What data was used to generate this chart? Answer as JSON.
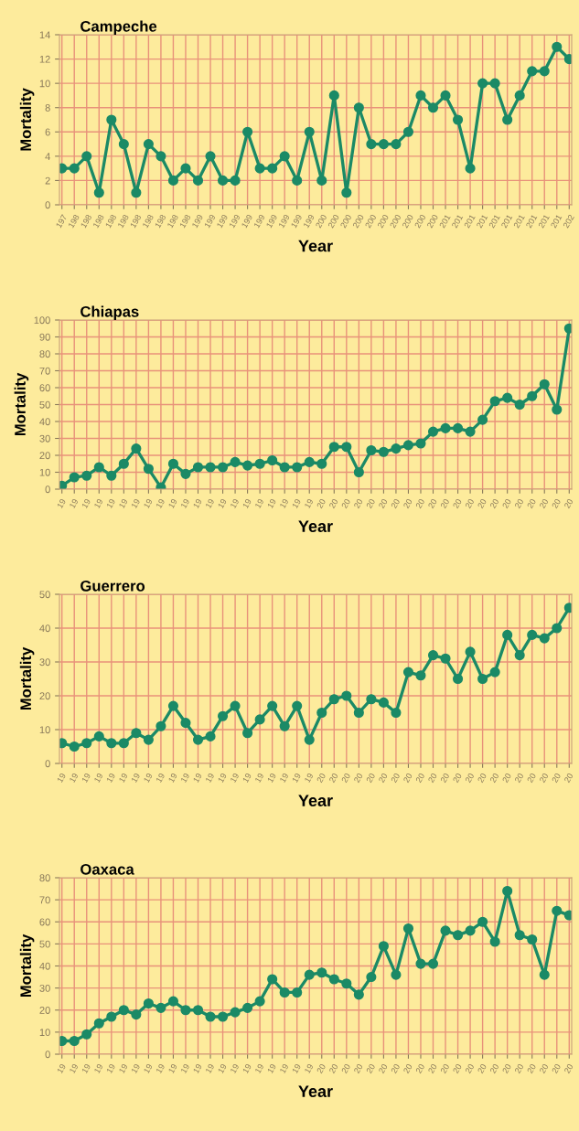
{
  "chart_data": [
    {
      "type": "line",
      "title": "Campeche",
      "xlabel": "Year",
      "ylabel": "Mortality",
      "categories": [
        "197",
        "198",
        "198",
        "198",
        "198",
        "198",
        "198",
        "198",
        "198",
        "198",
        "198",
        "199",
        "199",
        "199",
        "199",
        "199",
        "199",
        "199",
        "199",
        "199",
        "199",
        "200",
        "200",
        "200",
        "200",
        "200",
        "200",
        "200",
        "200",
        "200",
        "200",
        "201",
        "201",
        "201",
        "201",
        "201",
        "201",
        "201",
        "201",
        "201",
        "201",
        "202"
      ],
      "series": [
        {
          "color": "#1b8a66",
          "values": [
            3,
            3,
            4,
            1,
            7,
            5,
            1,
            5,
            4,
            2,
            3,
            2,
            4,
            2,
            2,
            6,
            3,
            3,
            4,
            2,
            6,
            2,
            9,
            1,
            8,
            5,
            5,
            5,
            6,
            9,
            8,
            9,
            7,
            3,
            10,
            10,
            7,
            9,
            11,
            11,
            13,
            12
          ]
        }
      ],
      "ylim": [
        0,
        14
      ],
      "yticks": [
        0,
        2,
        4,
        6,
        8,
        10,
        12,
        14
      ],
      "grid": true,
      "marker": "circle",
      "line_style": "solid"
    },
    {
      "type": "line",
      "title": "Chiapas",
      "xlabel": "Year",
      "ylabel": "Mortality",
      "categories": [
        "19",
        "19",
        "19",
        "19",
        "19",
        "19",
        "19",
        "19",
        "19",
        "19",
        "19",
        "19",
        "19",
        "19",
        "19",
        "19",
        "19",
        "19",
        "19",
        "19",
        "19",
        "20",
        "20",
        "20",
        "20",
        "20",
        "20",
        "20",
        "20",
        "20",
        "20",
        "20",
        "20",
        "20",
        "20",
        "20",
        "20",
        "20",
        "20",
        "20",
        "20",
        "20"
      ],
      "series": [
        {
          "color": "#1b8a66",
          "values": [
            2,
            7,
            8,
            13,
            8,
            15,
            24,
            12,
            1,
            15,
            9,
            13,
            13,
            13,
            16,
            14,
            15,
            17,
            13,
            13,
            16,
            15,
            25,
            25,
            10,
            23,
            22,
            24,
            26,
            27,
            34,
            36,
            36,
            34,
            41,
            52,
            54,
            50,
            55,
            62,
            47,
            95
          ]
        }
      ],
      "ylim": [
        0,
        100
      ],
      "yticks": [
        0,
        10,
        20,
        30,
        40,
        50,
        60,
        70,
        80,
        90,
        100
      ],
      "grid": true,
      "marker": "circle",
      "line_style": "solid"
    },
    {
      "type": "line",
      "title": "Guerrero",
      "xlabel": "Year",
      "ylabel": "Mortality",
      "categories": [
        "19",
        "19",
        "19",
        "19",
        "19",
        "19",
        "19",
        "19",
        "19",
        "19",
        "19",
        "19",
        "19",
        "19",
        "19",
        "19",
        "19",
        "19",
        "19",
        "19",
        "19",
        "20",
        "20",
        "20",
        "20",
        "20",
        "20",
        "20",
        "20",
        "20",
        "20",
        "20",
        "20",
        "20",
        "20",
        "20",
        "20",
        "20",
        "20",
        "20",
        "20",
        "20"
      ],
      "series": [
        {
          "color": "#1b8a66",
          "values": [
            6,
            5,
            6,
            8,
            6,
            6,
            9,
            7,
            11,
            17,
            12,
            7,
            8,
            14,
            17,
            9,
            13,
            17,
            11,
            17,
            7,
            15,
            19,
            20,
            15,
            19,
            18,
            15,
            27,
            26,
            32,
            31,
            25,
            33,
            25,
            27,
            38,
            32,
            38,
            37,
            40,
            46
          ]
        }
      ],
      "ylim": [
        0,
        50
      ],
      "yticks": [
        0,
        10,
        20,
        30,
        40,
        50
      ],
      "grid": true,
      "marker": "circle",
      "line_style": "solid"
    },
    {
      "type": "line",
      "title": "Oaxaca",
      "xlabel": "Year",
      "ylabel": "Mortality",
      "categories": [
        "19",
        "19",
        "19",
        "19",
        "19",
        "19",
        "19",
        "19",
        "19",
        "19",
        "19",
        "19",
        "19",
        "19",
        "19",
        "19",
        "19",
        "19",
        "19",
        "19",
        "19",
        "20",
        "20",
        "20",
        "20",
        "20",
        "20",
        "20",
        "20",
        "20",
        "20",
        "20",
        "20",
        "20",
        "20",
        "20",
        "20",
        "20",
        "20",
        "20",
        "20",
        "20"
      ],
      "series": [
        {
          "color": "#1b8a66",
          "values": [
            6,
            6,
            9,
            14,
            17,
            20,
            18,
            23,
            21,
            24,
            20,
            20,
            17,
            17,
            19,
            21,
            24,
            34,
            28,
            28,
            36,
            37,
            34,
            32,
            27,
            35,
            49,
            36,
            57,
            41,
            41,
            56,
            54,
            56,
            60,
            51,
            74,
            54,
            52,
            36,
            65,
            63
          ]
        }
      ],
      "ylim": [
        0,
        80
      ],
      "yticks": [
        0,
        10,
        20,
        30,
        40,
        50,
        60,
        70,
        80
      ],
      "grid": true,
      "marker": "circle",
      "line_style": "solid"
    }
  ]
}
